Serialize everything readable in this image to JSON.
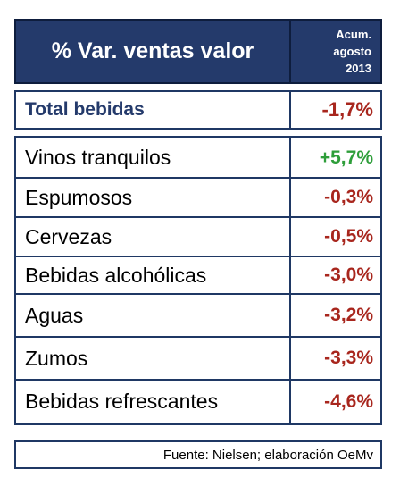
{
  "colors": {
    "header_bg": "#243a6b",
    "border": "#1f3864",
    "total_label": "#243a6b",
    "negative": "#a8261d",
    "positive": "#2e9e3a"
  },
  "chart_data": {
    "type": "table",
    "title": "% Var. ventas valor",
    "period_lines": [
      "Acum.",
      "agosto",
      "2013"
    ],
    "total": {
      "label": "Total bebidas",
      "value": -1.7,
      "display": "-1,7%"
    },
    "rows": [
      {
        "label": "Vinos tranquilos",
        "value": 5.7,
        "display": "+5,7%"
      },
      {
        "label": "Espumosos",
        "value": -0.3,
        "display": "-0,3%"
      },
      {
        "label": "Cervezas",
        "value": -0.5,
        "display": "-0,5%"
      },
      {
        "label": "Bebidas alcohólicas",
        "value": -3.0,
        "display": "-3,0%"
      },
      {
        "label": "Aguas",
        "value": -3.2,
        "display": "-3,2%"
      },
      {
        "label": "Zumos",
        "value": -3.3,
        "display": "-3,3%"
      },
      {
        "label": "Bebidas refrescantes",
        "value": -4.6,
        "display": "-4,6%"
      }
    ],
    "source": "Fuente: Nielsen; elaboración OeMv"
  }
}
